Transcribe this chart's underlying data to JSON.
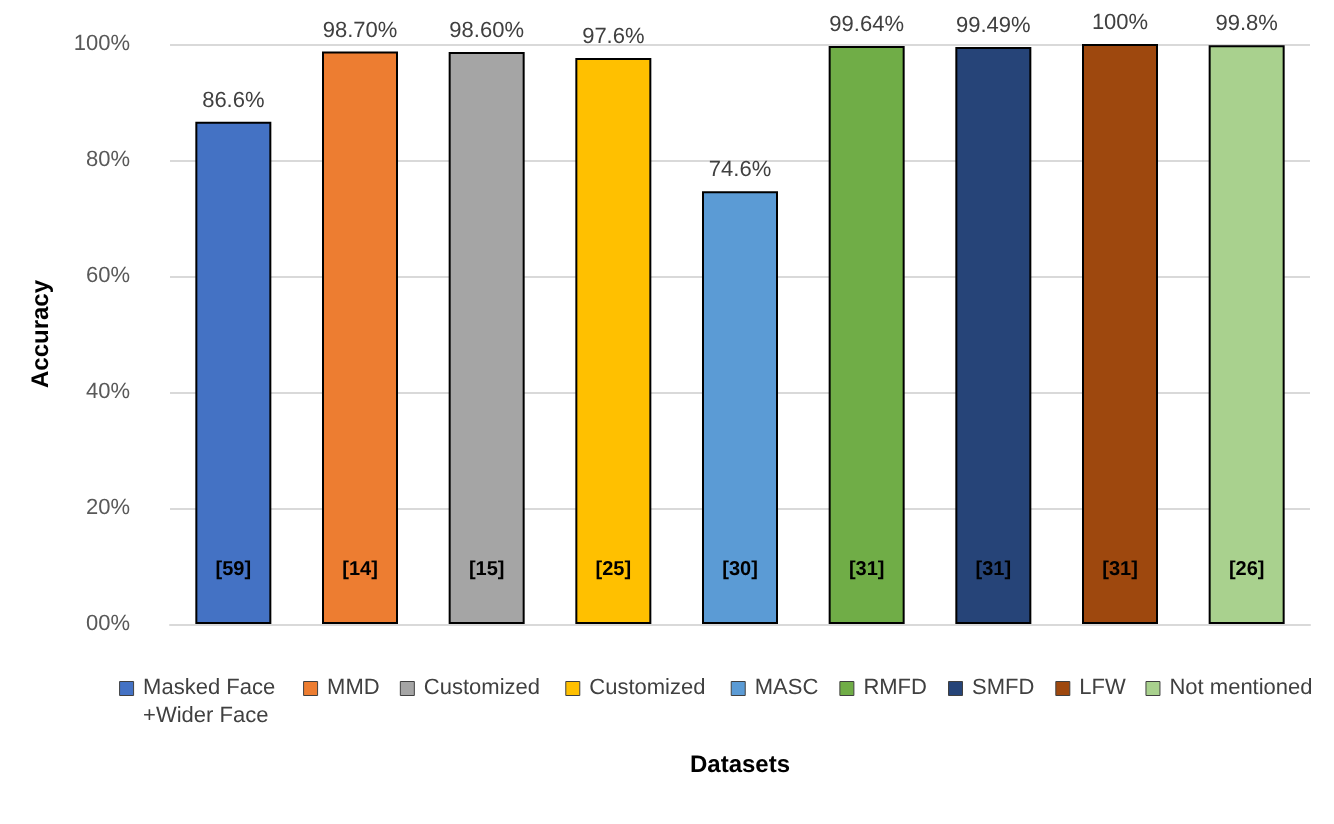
{
  "chart_data": {
    "type": "bar",
    "xlabel": "Datasets",
    "ylabel": "Accuracy",
    "categories": [
      "[59]",
      "[14]",
      "[15]",
      "[25]",
      "[30]",
      "[31]",
      "[31]",
      "[31]",
      "[26]"
    ],
    "ylim": [
      0,
      100
    ],
    "yticks": [
      {
        "value": 0,
        "label": "00%"
      },
      {
        "value": 20,
        "label": "20%"
      },
      {
        "value": 40,
        "label": "40%"
      },
      {
        "value": 60,
        "label": "60%"
      },
      {
        "value": 80,
        "label": "80%"
      },
      {
        "value": 100,
        "label": "100%"
      }
    ],
    "grid": "y",
    "legend": "bottom",
    "series": [
      {
        "name": "Masked Face +Wider Face",
        "color": "#4472c4",
        "values": [
          86.6,
          null,
          null,
          null,
          null,
          null,
          null,
          null,
          null
        ],
        "value_labels": [
          "86.6%",
          null,
          null,
          null,
          null,
          null,
          null,
          null,
          null
        ]
      },
      {
        "name": "MMD",
        "color": "#ed7d31",
        "values": [
          null,
          98.7,
          null,
          null,
          null,
          null,
          null,
          null,
          null
        ],
        "value_labels": [
          null,
          "98.70%",
          null,
          null,
          null,
          null,
          null,
          null,
          null
        ]
      },
      {
        "name": "Customized",
        "color": "#a5a5a5",
        "values": [
          null,
          null,
          98.6,
          null,
          null,
          null,
          null,
          null,
          null
        ],
        "value_labels": [
          null,
          null,
          "98.60%",
          null,
          null,
          null,
          null,
          null,
          null
        ]
      },
      {
        "name": "Customized",
        "color": "#ffc000",
        "values": [
          null,
          null,
          null,
          97.6,
          null,
          null,
          null,
          null,
          null
        ],
        "value_labels": [
          null,
          null,
          null,
          "97.6%",
          null,
          null,
          null,
          null,
          null
        ]
      },
      {
        "name": "MASC",
        "color": "#5b9bd5",
        "values": [
          null,
          null,
          null,
          null,
          74.6,
          null,
          null,
          null,
          null
        ],
        "value_labels": [
          null,
          null,
          null,
          null,
          "74.6%",
          null,
          null,
          null,
          null
        ]
      },
      {
        "name": "RMFD",
        "color": "#70ad47",
        "values": [
          null,
          null,
          null,
          null,
          null,
          99.64,
          null,
          null,
          null
        ],
        "value_labels": [
          null,
          null,
          null,
          null,
          null,
          "99.64%",
          null,
          null,
          null
        ]
      },
      {
        "name": "SMFD",
        "color": "#264478",
        "values": [
          null,
          null,
          null,
          null,
          null,
          null,
          99.49,
          null,
          null
        ],
        "value_labels": [
          null,
          null,
          null,
          null,
          null,
          null,
          "99.49%",
          null,
          null
        ]
      },
      {
        "name": "LFW",
        "color": "#9e480e",
        "values": [
          null,
          null,
          null,
          null,
          null,
          null,
          null,
          100,
          null
        ],
        "value_labels": [
          null,
          null,
          null,
          null,
          null,
          null,
          null,
          "100%",
          null
        ]
      },
      {
        "name": "Not mentioned",
        "color": "#a9d18e",
        "values": [
          null,
          null,
          null,
          null,
          null,
          null,
          null,
          null,
          99.8
        ],
        "value_labels": [
          null,
          null,
          null,
          null,
          null,
          null,
          null,
          null,
          "99.8%"
        ]
      }
    ]
  }
}
